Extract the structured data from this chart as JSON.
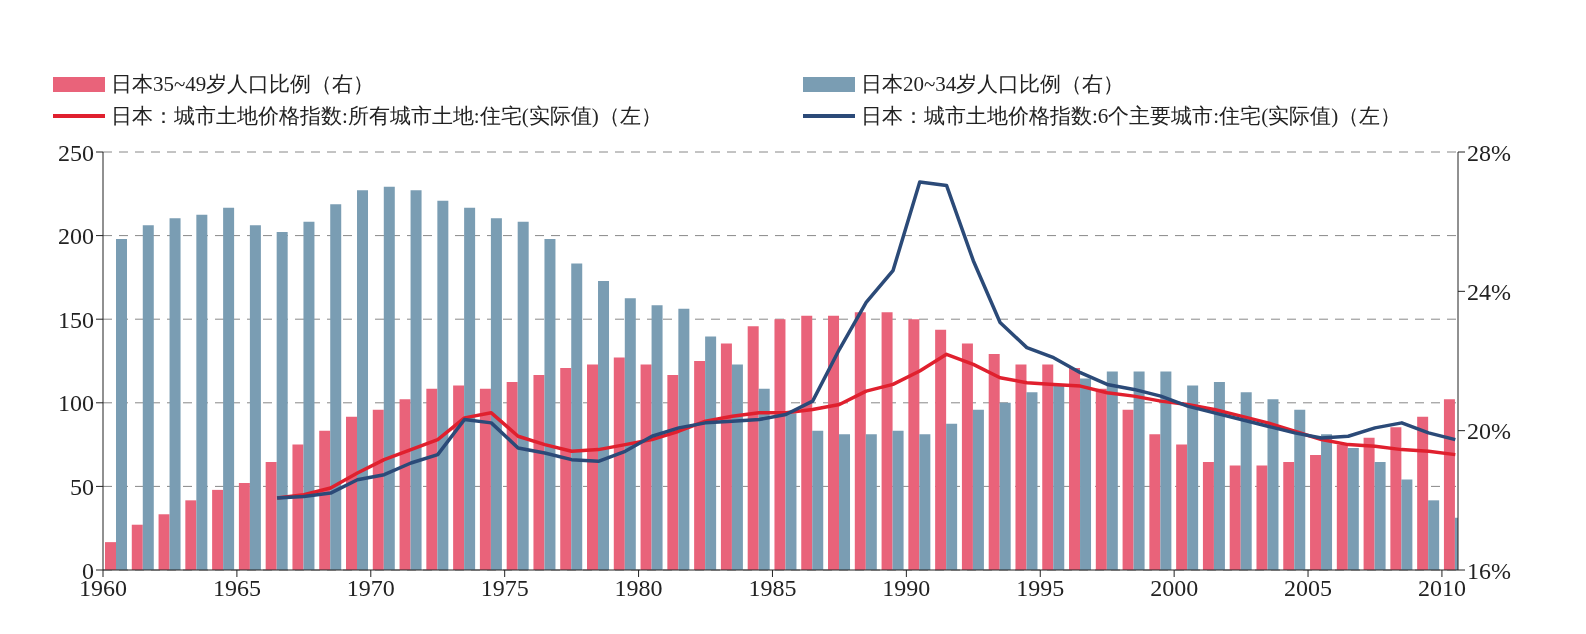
{
  "chart_data": {
    "type": "bar",
    "legend": "top",
    "grid": "y",
    "x": [
      1960.5,
      1961.5,
      1962.5,
      1963.5,
      1964.5,
      1965.5,
      1966.5,
      1967.5,
      1968.5,
      1969.5,
      1970.5,
      1971.5,
      1972.5,
      1973.5,
      1974.5,
      1975.5,
      1976.5,
      1977.5,
      1978.5,
      1979.5,
      1980.5,
      1981.5,
      1982.5,
      1983.5,
      1984.5,
      1985.5,
      1986.5,
      1987.5,
      1988.5,
      1989.5,
      1990.5,
      1991.5,
      1992.5,
      1993.5,
      1994.5,
      1995.5,
      1996.5,
      1997.5,
      1998.5,
      1999.5,
      2000.5,
      2001.5,
      2002.5,
      2003.5,
      2004.5,
      2005.5,
      2006.5,
      2007.5,
      2008.5,
      2009.5,
      2010.5
    ],
    "xlim": [
      1960,
      2010.6
    ],
    "xticks": [
      1960,
      1965,
      1970,
      1975,
      1980,
      1985,
      1990,
      1995,
      2000,
      2005,
      2010
    ],
    "ylim": [
      0,
      250
    ],
    "yticks": [
      0,
      50,
      100,
      150,
      200,
      250
    ],
    "y2lim": [
      16,
      28
    ],
    "y2ticks": [
      {
        "value": 16,
        "label": "16%"
      },
      {
        "value": 20,
        "label": "20%"
      },
      {
        "value": 24,
        "label": "24%"
      },
      {
        "value": 28,
        "label": "28%"
      }
    ],
    "series": [
      {
        "name": "日本35~49岁人口比例（右）",
        "axis": "y2",
        "color": "#e9637a",
        "values": [
          16.8,
          17.3,
          17.6,
          18.0,
          18.3,
          18.5,
          19.1,
          19.6,
          20.0,
          20.4,
          20.6,
          20.9,
          21.2,
          21.3,
          21.2,
          21.4,
          21.6,
          21.8,
          21.9,
          22.1,
          21.9,
          21.6,
          22.0,
          22.5,
          23.0,
          23.2,
          23.3,
          23.3,
          23.4,
          23.4,
          23.2,
          22.9,
          22.5,
          22.2,
          21.9,
          21.9,
          21.8,
          21.2,
          20.6,
          19.9,
          19.6,
          19.1,
          19.0,
          19.0,
          19.1,
          19.3,
          19.6,
          19.8,
          20.1,
          20.4,
          20.9
        ]
      },
      {
        "name": "日本20~34岁人口比例（右）",
        "axis": "y2",
        "color": "#7a9db3",
        "values": [
          25.5,
          25.9,
          26.1,
          26.2,
          26.4,
          25.9,
          25.7,
          26.0,
          26.5,
          26.9,
          27.0,
          26.9,
          26.6,
          26.4,
          26.1,
          26.0,
          25.5,
          24.8,
          24.3,
          23.8,
          23.6,
          23.5,
          22.7,
          21.9,
          21.2,
          20.5,
          20.0,
          19.9,
          19.9,
          20.0,
          19.9,
          20.2,
          20.6,
          20.8,
          21.1,
          21.3,
          21.5,
          21.7,
          21.7,
          21.7,
          21.3,
          21.4,
          21.1,
          20.9,
          20.6,
          19.9,
          19.5,
          19.1,
          18.6,
          18.0,
          17.5
        ]
      },
      {
        "name": "日本：城市土地价格指数:所有城市土地:住宅(实际值)（左）",
        "type": "line",
        "axis": "y",
        "color": "#e0202e",
        "values": [
          null,
          null,
          null,
          null,
          null,
          null,
          43,
          45,
          49,
          58,
          66,
          72,
          78,
          91,
          94,
          80,
          75,
          71,
          72,
          75,
          78,
          83,
          89,
          92,
          94,
          94,
          96,
          99,
          107,
          111,
          119,
          129,
          123,
          115,
          112,
          111,
          110,
          106,
          104,
          101,
          99,
          96,
          92,
          88,
          83,
          78,
          75,
          74,
          72,
          71,
          69
        ]
      },
      {
        "name": "日本：城市土地价格指数:6个主要城市:住宅(实际值)（左）",
        "type": "line",
        "axis": "y",
        "color": "#2b4a78",
        "values": [
          null,
          null,
          null,
          null,
          null,
          null,
          43,
          44,
          46,
          54,
          57,
          64,
          69,
          90,
          88,
          73,
          70,
          66,
          65,
          71,
          80,
          85,
          88,
          89,
          90,
          93,
          101,
          132,
          160,
          179,
          232,
          230,
          185,
          148,
          133,
          127,
          118,
          111,
          108,
          104,
          98,
          94,
          90,
          86,
          82,
          79,
          80,
          85,
          88,
          82,
          78
        ]
      }
    ]
  }
}
